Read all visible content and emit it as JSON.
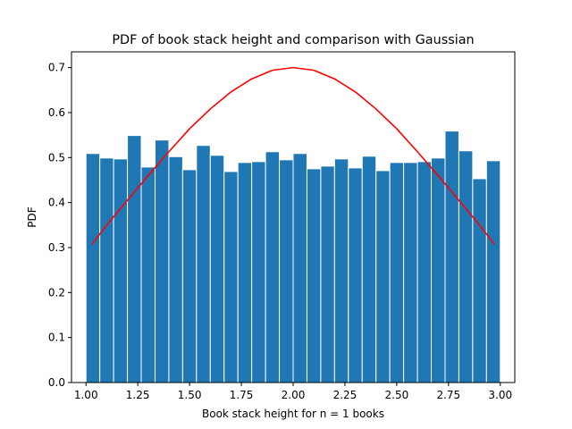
{
  "chart_data": {
    "type": "bar",
    "title": "PDF of book stack height and comparison with Gaussian",
    "xlabel": "Book stack height for n = 1 books",
    "ylabel": "PDF",
    "xlim": [
      0.93,
      3.07
    ],
    "ylim": [
      0.0,
      0.735
    ],
    "x_ticks": [
      1.0,
      1.25,
      1.5,
      1.75,
      2.0,
      2.25,
      2.5,
      2.75,
      3.0
    ],
    "x_tick_labels": [
      "1.00",
      "1.25",
      "1.50",
      "1.75",
      "2.00",
      "2.25",
      "2.50",
      "2.75",
      "3.00"
    ],
    "y_ticks": [
      0.0,
      0.1,
      0.2,
      0.3,
      0.4,
      0.5,
      0.6,
      0.7
    ],
    "y_tick_labels": [
      "0.0",
      "0.1",
      "0.2",
      "0.3",
      "0.4",
      "0.5",
      "0.6",
      "0.7"
    ],
    "grid": false,
    "histogram": {
      "bin_start": 1.0,
      "bin_end": 3.0,
      "bin_count": 30,
      "values": [
        0.509,
        0.499,
        0.497,
        0.549,
        0.479,
        0.539,
        0.502,
        0.473,
        0.527,
        0.505,
        0.469,
        0.489,
        0.491,
        0.513,
        0.495,
        0.509,
        0.475,
        0.481,
        0.497,
        0.477,
        0.503,
        0.471,
        0.489,
        0.489,
        0.491,
        0.499,
        0.559,
        0.515,
        0.453,
        0.493
      ],
      "color": "#1f77b4",
      "edge_color": "#ffffff"
    },
    "curve": {
      "type": "line",
      "color": "#ff0000",
      "x": [
        1.03,
        1.1,
        1.2,
        1.3,
        1.4,
        1.5,
        1.6,
        1.7,
        1.8,
        1.9,
        2.0,
        2.1,
        2.2,
        2.3,
        2.4,
        2.5,
        2.6,
        2.7,
        2.8,
        2.9,
        2.97
      ],
      "y": [
        0.308,
        0.35,
        0.405,
        0.46,
        0.513,
        0.564,
        0.608,
        0.646,
        0.675,
        0.694,
        0.7,
        0.694,
        0.675,
        0.646,
        0.608,
        0.564,
        0.513,
        0.46,
        0.405,
        0.35,
        0.308
      ]
    }
  }
}
